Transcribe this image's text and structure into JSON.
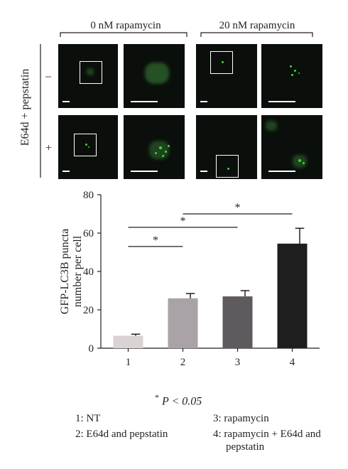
{
  "figure": {
    "header_left": "0 nM rapamycin",
    "header_right": "20 nM rapamycin",
    "treatment_label": "E64d + pepstatin",
    "row_minus": "–",
    "row_plus": "+",
    "significance_note_star": "*",
    "significance_note_text": "P < 0.05",
    "legend": [
      {
        "label": "1: NT"
      },
      {
        "label": "2: E64d and pepstatin"
      },
      {
        "label": "3: rapamycin"
      },
      {
        "label": "4: rapamycin + E64d and pepstatin"
      }
    ],
    "colors": {
      "bar1": "#d9d3d4",
      "bar2": "#a9a2a6",
      "bar3": "#5f5a5e",
      "bar4": "#1e1e1e",
      "puncta": "#3fd63f",
      "panel_bg": "#0b0f0b"
    }
  },
  "chart_data": {
    "type": "bar",
    "categories": [
      "1",
      "2",
      "3",
      "4"
    ],
    "values": [
      6.5,
      26,
      27,
      54.5
    ],
    "errors": [
      0.8,
      2.5,
      3,
      8
    ],
    "ylabel": "GFP-LC3B puncta number per cell",
    "ylim": [
      0,
      80
    ],
    "yticks": [
      0,
      20,
      40,
      60,
      80
    ],
    "grid": false,
    "significance": [
      {
        "from": "1",
        "to": "2",
        "label": "*"
      },
      {
        "from": "1",
        "to": "3",
        "label": "*"
      },
      {
        "from": "2",
        "to": "4",
        "label": "*"
      }
    ]
  }
}
